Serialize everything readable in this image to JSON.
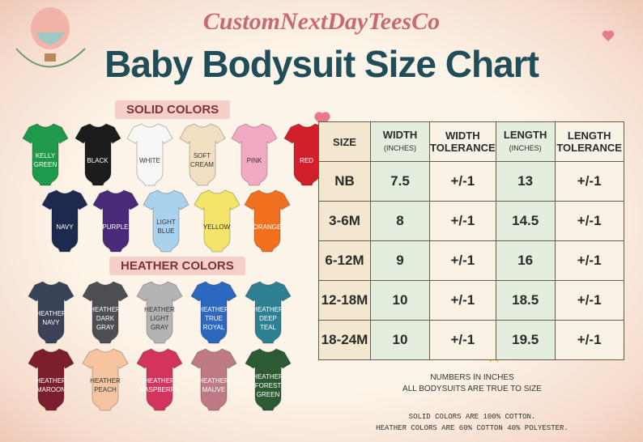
{
  "header": {
    "brand": "CustomNextDayTeesCo",
    "title": "Baby Bodysuit Size Chart"
  },
  "solid_colors": {
    "heading": "SOLID COLORS",
    "items": [
      {
        "label": "KELLY GREEN",
        "color": "#1f9a4a"
      },
      {
        "label": "BLACK",
        "color": "#1c1c1c"
      },
      {
        "label": "WHITE",
        "color": "#f7f7f5"
      },
      {
        "label": "SOFT CREAM",
        "color": "#f1dfc2"
      },
      {
        "label": "PINK",
        "color": "#f2a9c4"
      },
      {
        "label": "RED",
        "color": "#d11f2b"
      },
      {
        "label": "NAVY",
        "color": "#1d2a4e"
      },
      {
        "label": "PURPLE",
        "color": "#4b2a7a"
      },
      {
        "label": "LIGHT BLUE",
        "color": "#a9d2ef"
      },
      {
        "label": "YELLOW",
        "color": "#f4e46a"
      },
      {
        "label": "ORANGE",
        "color": "#f0701f"
      }
    ]
  },
  "heather_colors": {
    "heading": "HEATHER COLORS",
    "items": [
      {
        "label": "HEATHER NAVY",
        "color": "#3a4258"
      },
      {
        "label": "HEATHER DARK GRAY",
        "color": "#4e4f52"
      },
      {
        "label": "HEATHER LIGHT GRAY",
        "color": "#b4b3b6"
      },
      {
        "label": "HEATHER TRUE ROYAL",
        "color": "#2c67c0"
      },
      {
        "label": "HEATHER DEEP TEAL",
        "color": "#2f7f92"
      },
      {
        "label": "HEATHER MAROON",
        "color": "#7b1f2f"
      },
      {
        "label": "HEATHER PEACH",
        "color": "#f6c4a0"
      },
      {
        "label": "HEATHER RASPBERRY",
        "color": "#d2345e"
      },
      {
        "label": "HEATHER MAUVE",
        "color": "#bd7a84"
      },
      {
        "label": "HEATHER FOREST GREEN",
        "color": "#2c5a33"
      }
    ]
  },
  "table": {
    "headers": [
      {
        "title": "SIZE"
      },
      {
        "title": "WIDTH",
        "unit": "(INCHES)"
      },
      {
        "title": "WIDTH TOLERANCE"
      },
      {
        "title": "LENGTH",
        "unit": "(INCHES)"
      },
      {
        "title": "LENGTH TOLERANCE"
      }
    ],
    "rows": [
      [
        "NB",
        "7.5",
        "+/-1",
        "13",
        "+/-1"
      ],
      [
        "3-6M",
        "8",
        "+/-1",
        "14.5",
        "+/-1"
      ],
      [
        "6-12M",
        "9",
        "+/-1",
        "16",
        "+/-1"
      ],
      [
        "12-18M",
        "10",
        "+/-1",
        "18.5",
        "+/-1"
      ],
      [
        "18-24M",
        "10",
        "+/-1",
        "19.5",
        "+/-1"
      ]
    ]
  },
  "notes": [
    "NUMBERS IN INCHES",
    "ALL BODYSUITS ARE TRUE TO SIZE"
  ],
  "fabric_notes": [
    "SOLID COLORS ARE 100% COTTON.",
    "HEATHER COLORS ARE 60% COTTON 40% POLYESTER."
  ]
}
